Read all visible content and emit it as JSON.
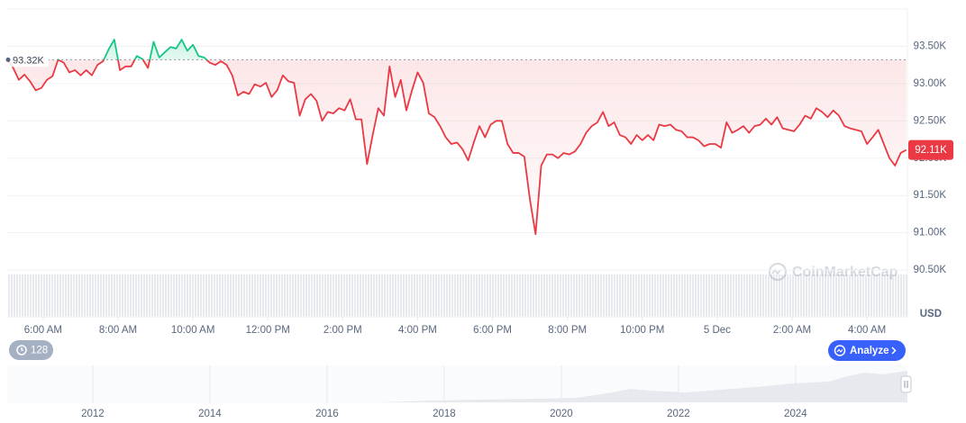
{
  "chart_data": {
    "type": "line",
    "x": [
      5.05,
      5.2,
      5.35,
      5.5,
      5.65,
      5.8,
      5.95,
      6.1,
      6.25,
      6.4,
      6.55,
      6.7,
      6.85,
      7,
      7.15,
      7.3,
      7.45,
      7.6,
      7.75,
      7.9,
      8.05,
      8.2,
      8.35,
      8.5,
      8.65,
      8.8,
      8.95,
      9.1,
      9.25,
      9.4,
      9.55,
      9.7,
      9.85,
      10,
      10.15,
      10.3,
      10.45,
      10.6,
      10.75,
      10.9,
      11.05,
      11.2,
      11.35,
      11.5,
      11.65,
      11.8,
      11.95,
      12.1,
      12.25,
      12.4,
      12.55,
      12.7,
      12.85,
      13,
      13.15,
      13.3,
      13.45,
      13.6,
      13.75,
      13.9,
      14.05,
      14.2,
      14.35,
      14.5,
      14.65,
      14.8,
      14.95,
      15.1,
      15.25,
      15.4,
      15.55,
      15.7,
      15.85,
      16,
      16.15,
      16.3,
      16.45,
      16.6,
      16.75,
      16.9,
      17.05,
      17.2,
      17.35,
      17.5,
      17.65,
      17.8,
      17.95,
      18.1,
      18.25,
      18.4,
      18.55,
      18.7,
      18.85,
      19,
      19.15,
      19.3,
      19.45,
      19.6,
      19.75,
      19.9,
      20.05,
      20.2,
      20.35,
      20.5,
      20.65,
      20.8,
      20.95,
      21.1,
      21.25,
      21.4,
      21.55,
      21.7,
      21.85,
      22,
      22.15,
      22.3,
      22.45,
      22.6,
      22.75,
      22.9,
      23.05,
      23.2,
      23.35,
      23.5,
      23.65,
      23.8,
      23.95,
      24.1,
      24.25,
      24.4,
      24.55,
      24.7,
      24.85,
      25,
      25.15,
      25.3,
      25.45,
      25.6,
      25.75,
      25.9,
      26.05,
      26.2,
      26.35,
      26.5,
      26.65,
      26.8,
      26.95,
      27.1,
      27.25,
      27.4,
      27.55,
      27.7,
      27.85,
      28,
      28.15,
      28.3,
      28.45,
      28.6,
      28.75,
      28.9,
      29.05
    ],
    "values": [
      93.33,
      93.21,
      93.05,
      93.12,
      93.03,
      92.91,
      92.94,
      93.05,
      93.1,
      93.32,
      93.28,
      93.15,
      93.18,
      93.11,
      93.18,
      93.11,
      93.25,
      93.3,
      93.46,
      93.59,
      93.18,
      93.23,
      93.23,
      93.37,
      93.33,
      93.21,
      93.56,
      93.35,
      93.42,
      93.49,
      93.47,
      93.59,
      93.44,
      93.52,
      93.37,
      93.35,
      93.28,
      93.25,
      93.3,
      93.25,
      93.11,
      92.84,
      92.89,
      92.86,
      92.99,
      92.96,
      93.01,
      92.82,
      92.91,
      93.11,
      93.03,
      93.01,
      92.57,
      92.79,
      92.86,
      92.77,
      92.5,
      92.62,
      92.6,
      92.67,
      92.64,
      92.79,
      92.52,
      92.52,
      91.92,
      92.31,
      92.67,
      92.57,
      93.23,
      92.82,
      93.05,
      92.64,
      92.91,
      93.15,
      93.01,
      92.6,
      92.55,
      92.43,
      92.28,
      92.19,
      92.21,
      92.12,
      91.97,
      92.21,
      92.43,
      92.28,
      92.45,
      92.5,
      92.5,
      92.19,
      92.07,
      92.07,
      92.02,
      91.44,
      90.98,
      91.9,
      92.05,
      92.05,
      92.0,
      92.07,
      92.05,
      92.09,
      92.19,
      92.34,
      92.43,
      92.48,
      92.62,
      92.43,
      92.48,
      92.31,
      92.28,
      92.19,
      92.31,
      92.24,
      92.31,
      92.24,
      92.45,
      92.43,
      92.45,
      92.38,
      92.36,
      92.28,
      92.28,
      92.24,
      92.16,
      92.19,
      92.19,
      92.14,
      92.48,
      92.34,
      92.38,
      92.43,
      92.34,
      92.43,
      92.45,
      92.53,
      92.45,
      92.55,
      92.4,
      92.38,
      92.36,
      92.45,
      92.57,
      92.53,
      92.67,
      92.62,
      92.55,
      92.64,
      92.57,
      92.43,
      92.4,
      92.38,
      92.36,
      92.19,
      92.28,
      92.38,
      92.19,
      92.0,
      91.9,
      92.07,
      92.11
    ],
    "up_color": "#16c784",
    "down_color": "#ea3943",
    "xlim": [
      5.04,
      29.08
    ],
    "xticks": [
      {
        "value": 6,
        "label": "6:00 AM"
      },
      {
        "value": 8,
        "label": "8:00 AM"
      },
      {
        "value": 10,
        "label": "10:00 AM"
      },
      {
        "value": 12,
        "label": "12:00 PM"
      },
      {
        "value": 14,
        "label": "2:00 PM"
      },
      {
        "value": 16,
        "label": "4:00 PM"
      },
      {
        "value": 18,
        "label": "6:00 PM"
      },
      {
        "value": 20,
        "label": "8:00 PM"
      },
      {
        "value": 22,
        "label": "10:00 PM"
      },
      {
        "value": 24,
        "label": "5 Dec"
      },
      {
        "value": 26,
        "label": "2:00 AM"
      },
      {
        "value": 28,
        "label": "4:00 AM"
      }
    ],
    "ylim": [
      90,
      94
    ],
    "yticks": [
      {
        "value": 90.5,
        "label": "90.50K"
      },
      {
        "value": 91,
        "label": "91.00K"
      },
      {
        "value": 91.5,
        "label": "91.50K"
      },
      {
        "value": 92,
        "label": "92.00K"
      },
      {
        "value": 92.5,
        "label": "92.50K"
      },
      {
        "value": 93,
        "label": "93.00K"
      },
      {
        "value": 93.5,
        "label": "93.50K"
      }
    ],
    "y_unit": "USD",
    "grid": true,
    "baseline": {
      "value": 93.32,
      "label": "93.32K"
    },
    "current_price": {
      "value": 92.11,
      "label": "92.11K"
    },
    "watermark": "CoinMarketCap",
    "navigator": {
      "xlim": [
        2010.54,
        2025.91
      ],
      "xticks": [
        2012,
        2014,
        2016,
        2018,
        2020,
        2022,
        2024
      ]
    },
    "controls": {
      "interval_badge": "128",
      "analyze_button": "Analyze"
    }
  }
}
